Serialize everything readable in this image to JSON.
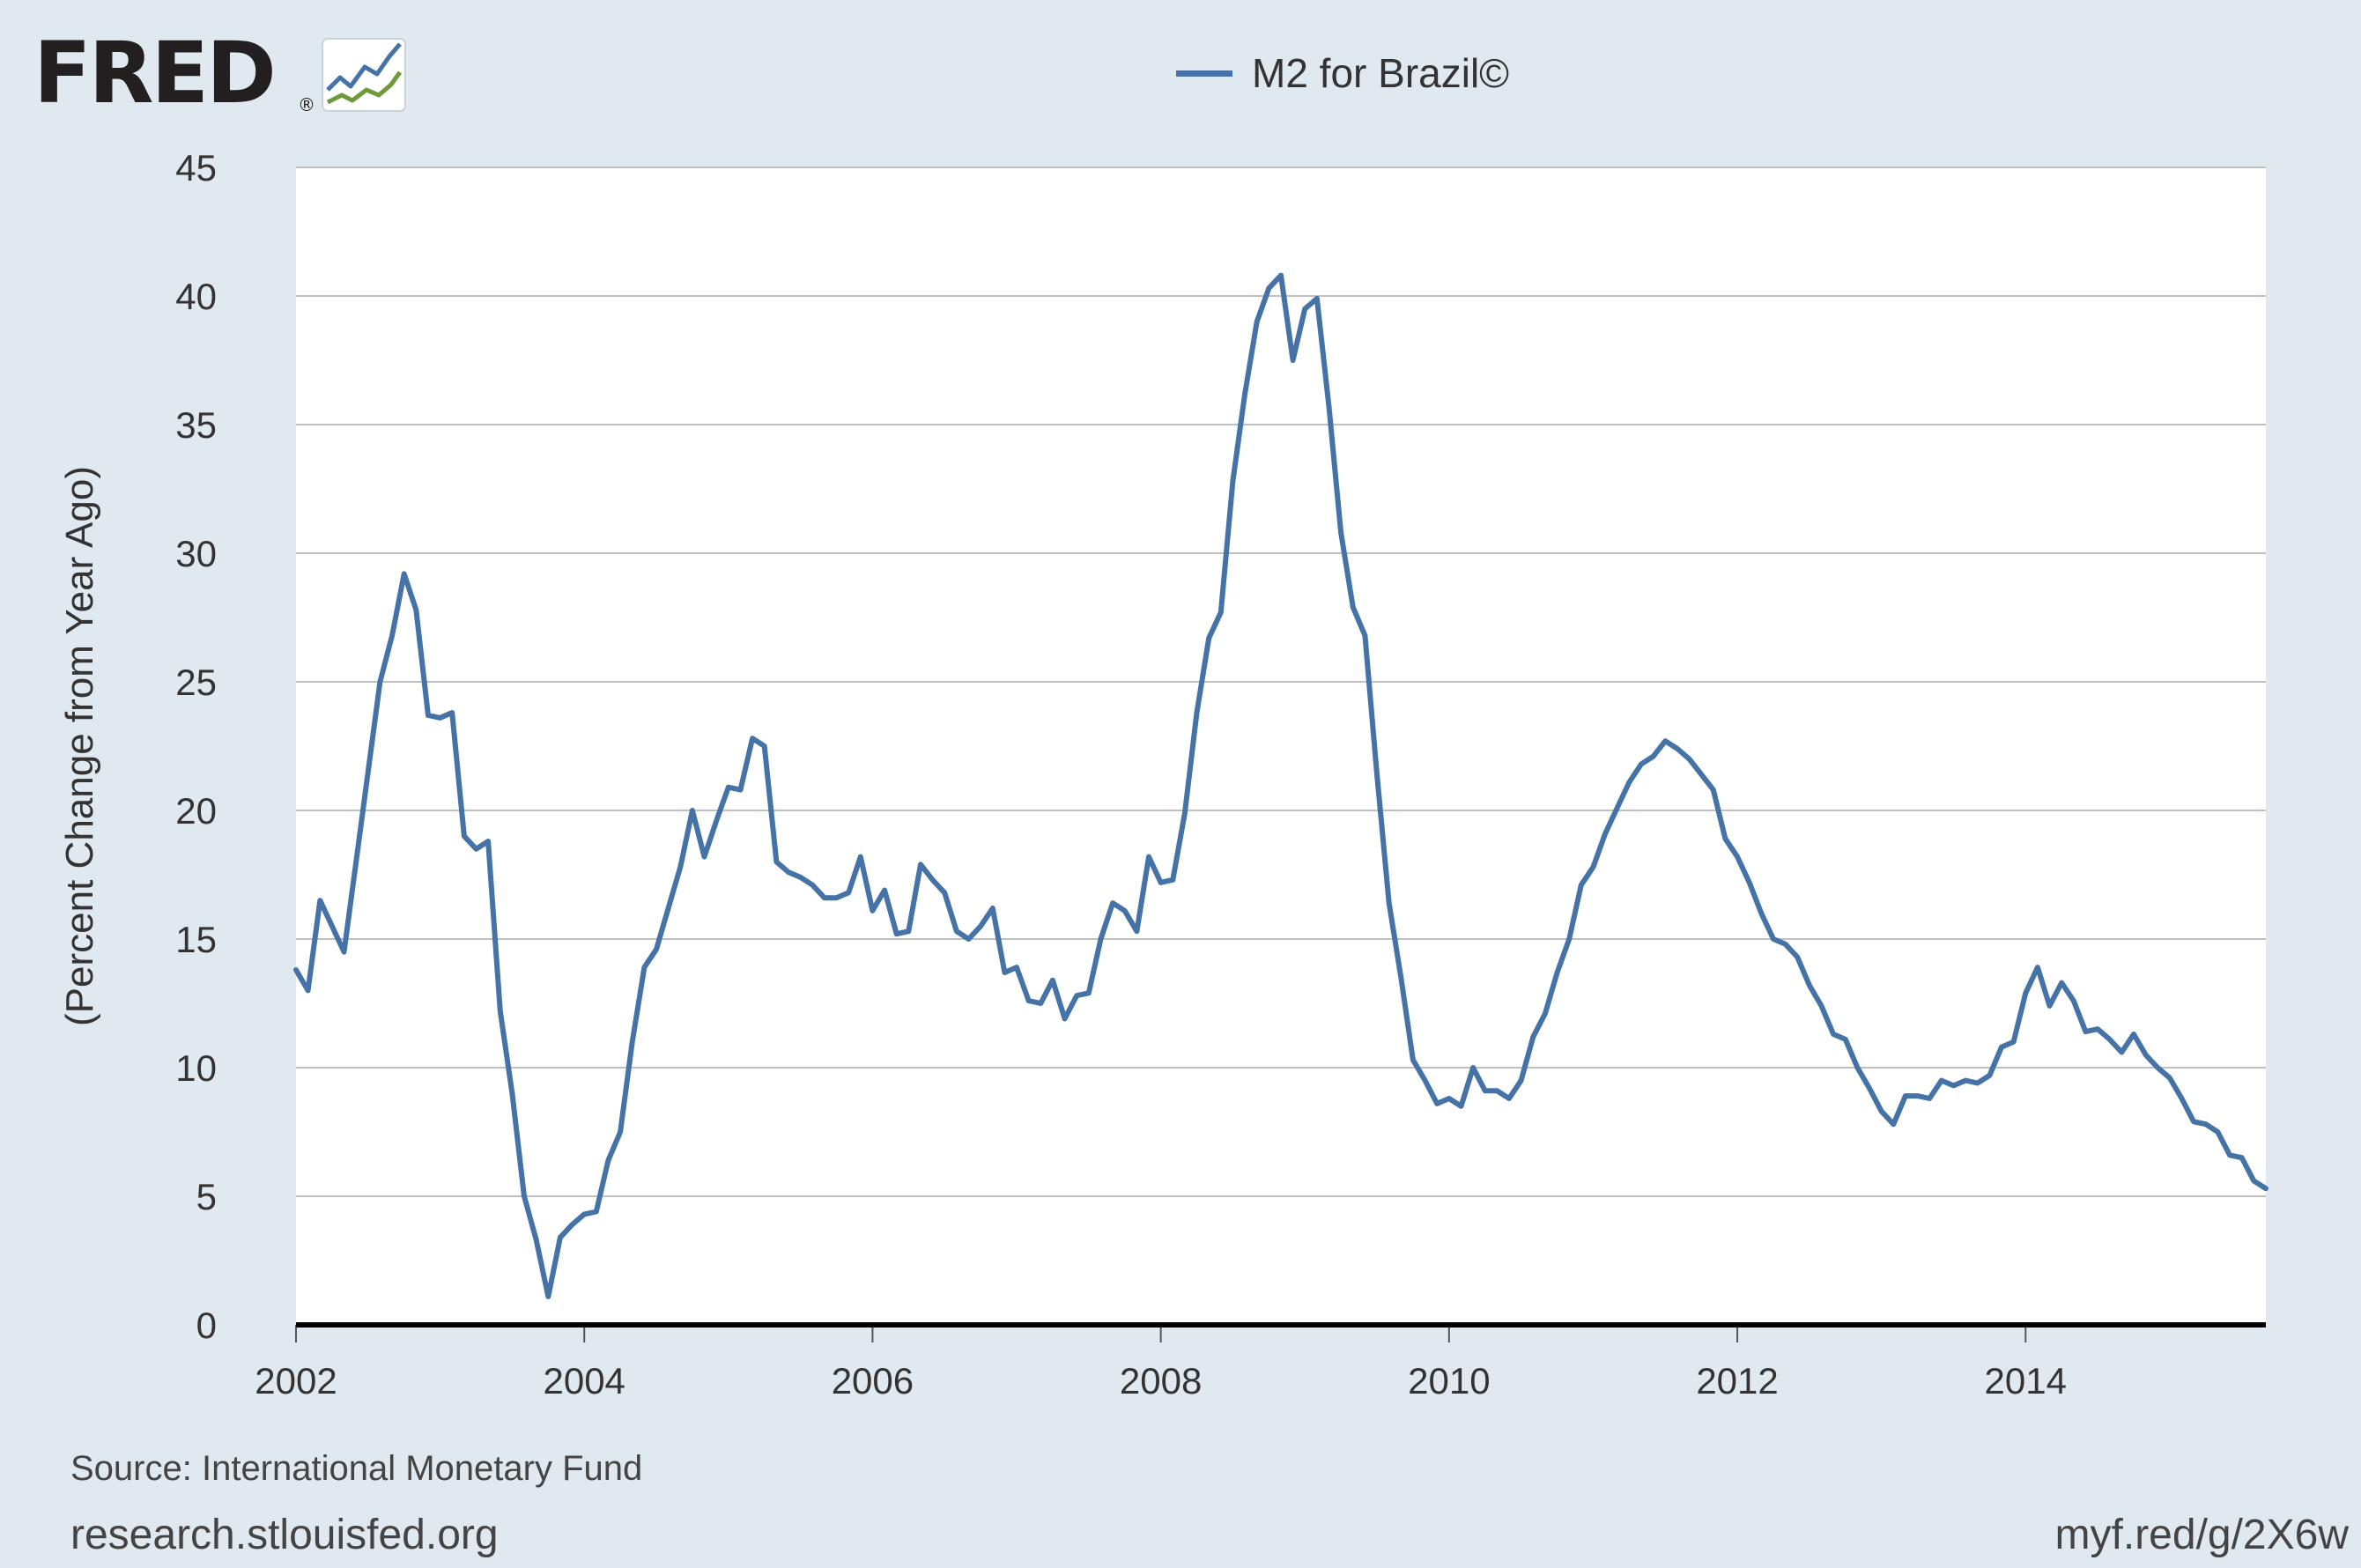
{
  "branding": {
    "logo_text": "FRED",
    "logo_icon": "line-graph-icon",
    "registered_mark": "®",
    "site": "research.stlouisfed.org",
    "shortlink": "myf.red/g/2X6w",
    "source": "Source: International Monetary Fund"
  },
  "colors": {
    "background": "#e1e9f0",
    "plot_background": "#ffffff",
    "series_line": "#4572a7",
    "grid": "#c0c0c0",
    "zero_line": "#000000",
    "logo_dark": "#231f20",
    "logo_blue": "#4572a7",
    "logo_green": "#6e9a3a"
  },
  "chart_data": {
    "type": "line",
    "title": "",
    "xlabel": "",
    "ylabel": "(Percent Change from Year Ago)",
    "xlim": [
      2002.0,
      2015.667
    ],
    "ylim": [
      0,
      45
    ],
    "x_ticks": [
      2002,
      2004,
      2006,
      2008,
      2010,
      2012,
      2014
    ],
    "x_tick_labels": [
      "2002",
      "2004",
      "2006",
      "2008",
      "2010",
      "2012",
      "2014"
    ],
    "y_ticks": [
      0,
      5,
      10,
      15,
      20,
      25,
      30,
      35,
      40,
      45
    ],
    "y_tick_labels": [
      "0",
      "5",
      "10",
      "15",
      "20",
      "25",
      "30",
      "35",
      "40",
      "45"
    ],
    "grid": true,
    "legend": "top-center",
    "x_start": "2002-01",
    "x_step": "1 month",
    "series": [
      {
        "name": "M2 for Brazil©",
        "color": "#4572a7",
        "values": [
          13.8,
          13.0,
          16.5,
          15.5,
          14.5,
          18.0,
          21.5,
          25.0,
          26.8,
          29.2,
          27.8,
          23.7,
          23.6,
          23.8,
          19.0,
          18.5,
          18.8,
          12.2,
          9.0,
          5.0,
          3.3,
          1.1,
          3.4,
          3.9,
          4.3,
          4.4,
          6.4,
          7.5,
          11.0,
          13.9,
          14.6,
          16.2,
          17.8,
          20.0,
          18.2,
          19.6,
          20.9,
          20.8,
          22.8,
          22.5,
          18.0,
          17.6,
          17.4,
          17.1,
          16.6,
          16.6,
          16.8,
          18.2,
          16.1,
          16.9,
          15.2,
          15.3,
          17.9,
          17.3,
          16.8,
          15.3,
          15.0,
          15.5,
          16.2,
          13.7,
          13.9,
          12.6,
          12.5,
          13.4,
          11.9,
          12.8,
          12.9,
          15.0,
          16.4,
          16.1,
          15.3,
          18.2,
          17.2,
          17.3,
          19.9,
          23.8,
          26.7,
          27.7,
          32.8,
          36.2,
          39.0,
          40.3,
          40.8,
          37.5,
          39.5,
          39.9,
          35.7,
          30.8,
          27.9,
          26.8,
          21.4,
          16.4,
          13.5,
          10.3,
          9.5,
          8.6,
          8.8,
          8.5,
          10.0,
          9.1,
          9.1,
          8.8,
          9.5,
          11.2,
          12.1,
          13.7,
          15.0,
          17.1,
          17.8,
          19.1,
          20.1,
          21.1,
          21.8,
          22.1,
          22.7,
          22.4,
          22.0,
          21.4,
          20.8,
          18.9,
          18.2,
          17.2,
          16.0,
          15.0,
          14.8,
          14.3,
          13.2,
          12.4,
          11.3,
          11.1,
          10.0,
          9.2,
          8.3,
          7.8,
          8.9,
          8.9,
          8.8,
          9.5,
          9.3,
          9.5,
          9.4,
          9.7,
          10.8,
          11.0,
          12.9,
          13.9,
          12.4,
          13.3,
          12.6,
          11.4,
          11.5,
          11.1,
          10.6,
          11.3,
          10.5,
          10.0,
          9.6,
          8.8,
          7.9,
          7.8,
          7.5,
          6.6,
          6.5,
          5.6,
          5.3
        ]
      }
    ]
  }
}
